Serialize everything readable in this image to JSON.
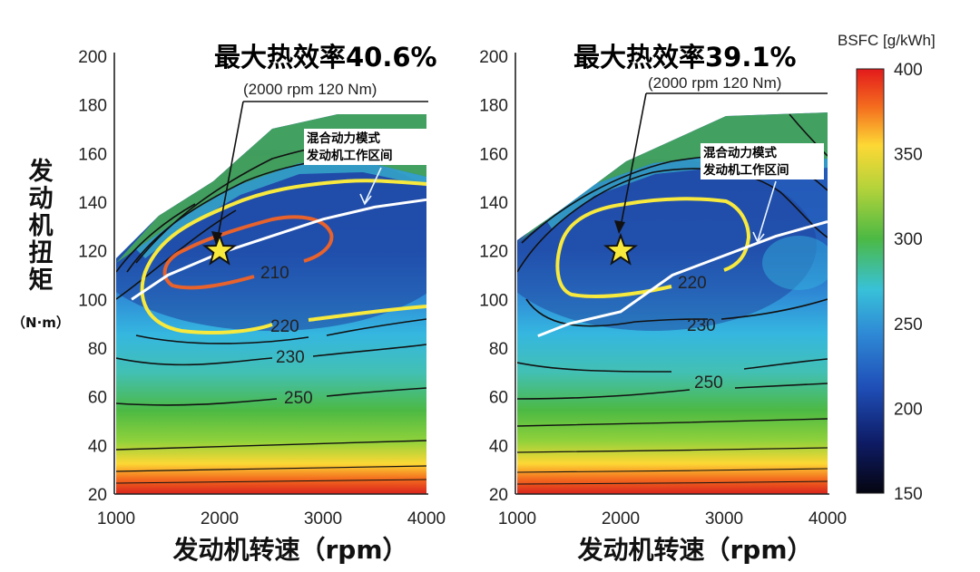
{
  "chart_data": [
    {
      "type": "heatmap",
      "title": "最大热效率40.6%",
      "subtitle": "(2000 rpm 120 Nm)",
      "xlabel": "发动机转速（rpm）",
      "ylabel": "发动机扭矩",
      "ylabel_unit": "（N·m）",
      "xlim": [
        1000,
        4000
      ],
      "ylim": [
        20,
        200
      ],
      "x_ticks": [
        "1000",
        "2000",
        "3000",
        "4000"
      ],
      "y_ticks": [
        "20",
        "40",
        "60",
        "80",
        "100",
        "120",
        "140",
        "160",
        "180",
        "200"
      ],
      "max_efficiency_point": {
        "x": 2000,
        "y": 120
      },
      "annotation": [
        "混合动力模式",
        "发动机工作区间"
      ],
      "contour_labels": [
        {
          "text": "210",
          "x": 2600,
          "y": 108
        },
        {
          "text": "220",
          "x": 2720,
          "y": 90
        },
        {
          "text": "230",
          "x": 2760,
          "y": 75
        },
        {
          "text": "250",
          "x": 2850,
          "y": 57
        }
      ],
      "hybrid_operating_line": [
        {
          "x": 1150,
          "y": 100
        },
        {
          "x": 1500,
          "y": 110
        },
        {
          "x": 2000,
          "y": 119
        },
        {
          "x": 2500,
          "y": 126
        },
        {
          "x": 3000,
          "y": 133
        },
        {
          "x": 3500,
          "y": 138
        },
        {
          "x": 4000,
          "y": 141
        }
      ]
    },
    {
      "type": "heatmap",
      "title": "最大热效率39.1%",
      "subtitle": "(2000 rpm 120 Nm)",
      "xlabel": "发动机转速（rpm）",
      "xlim": [
        1000,
        4000
      ],
      "ylim": [
        20,
        200
      ],
      "x_ticks": [
        "1000",
        "2000",
        "3000",
        "4000"
      ],
      "y_ticks": [
        "20",
        "40",
        "60",
        "80",
        "100",
        "120",
        "140",
        "160",
        "180",
        "200"
      ],
      "max_efficiency_point": {
        "x": 2000,
        "y": 120
      },
      "annotation": [
        "混合动力模式",
        "发动机工作区间"
      ],
      "contour_labels": [
        {
          "text": "220",
          "x": 2700,
          "y": 104
        },
        {
          "text": "230",
          "x": 2750,
          "y": 87
        },
        {
          "text": "250",
          "x": 2800,
          "y": 62
        }
      ],
      "hybrid_operating_line": [
        {
          "x": 1200,
          "y": 85
        },
        {
          "x": 1500,
          "y": 90
        },
        {
          "x": 2000,
          "y": 95
        },
        {
          "x": 2500,
          "y": 110
        },
        {
          "x": 3000,
          "y": 118
        },
        {
          "x": 3500,
          "y": 126
        },
        {
          "x": 4000,
          "y": 132
        }
      ]
    }
  ],
  "colorbar": {
    "title": "BSFC [g/kWh]",
    "min": 150,
    "max": 400,
    "ticks": [
      "400",
      "350",
      "300",
      "250",
      "200",
      "150"
    ],
    "colors": [
      "#e31a1c",
      "#f46d1e",
      "#fdd835",
      "#b5d33a",
      "#4cb944",
      "#38c1d8",
      "#2f7fd0",
      "#1f3fa0",
      "#0a0a2a"
    ]
  }
}
